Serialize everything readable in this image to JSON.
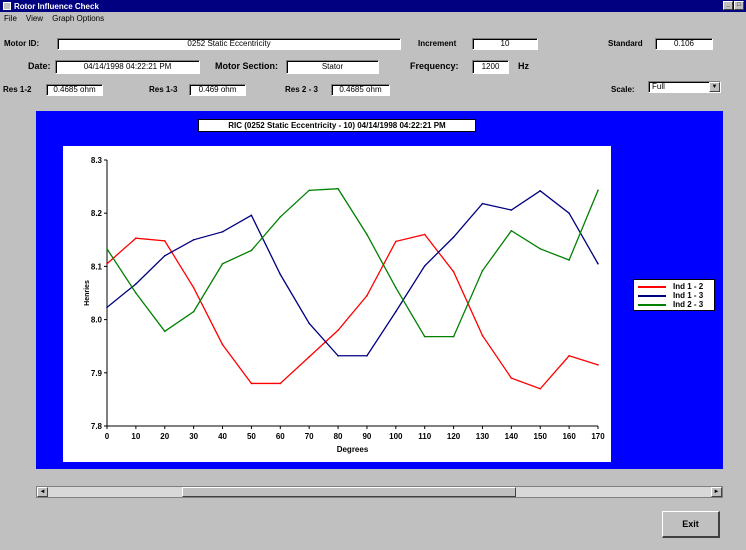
{
  "window": {
    "title": "Rotor Influence Check",
    "buttons": {
      "minimize": "_",
      "maximize": "□"
    }
  },
  "menu": [
    "File",
    "View",
    "Graph Options"
  ],
  "form": {
    "motor_id_label": "Motor ID:",
    "motor_id_value": "0252 Static Eccentricity",
    "increment_label": "Increment",
    "increment_value": "10",
    "standard_label": "Standard",
    "standard_value": "0.106",
    "date_label": "Date:",
    "date_value": "04/14/1998 04:22:21 PM",
    "motor_section_label": "Motor Section:",
    "motor_section_value": "Stator",
    "frequency_label": "Frequency:",
    "frequency_value": "1200",
    "frequency_unit": "Hz",
    "res12_label": "Res 1-2",
    "res12_value": "0.4685 ohm",
    "res13_label": "Res 1-3",
    "res13_value": "0.469 ohm",
    "res23_label": "Res 2 - 3",
    "res23_value": "0.4685 ohm",
    "scale_label": "Scale:",
    "scale_value": "Full"
  },
  "chart_data": {
    "type": "line",
    "title": "RIC (0252 Static Eccentricity - 10) 04/14/1998 04:22:21 PM",
    "xlabel": "Degrees",
    "ylabel": "Henries",
    "xlim": [
      0,
      170
    ],
    "ylim": [
      7.8,
      8.3
    ],
    "x": [
      0,
      10,
      20,
      30,
      40,
      50,
      60,
      70,
      80,
      90,
      100,
      110,
      120,
      130,
      140,
      150,
      160,
      170
    ],
    "x_ticks": [
      "0",
      "10",
      "20",
      "30",
      "40",
      "50",
      "60",
      "70",
      "80",
      "90",
      "100",
      "110",
      "120",
      "130",
      "140",
      "150",
      "160",
      "170"
    ],
    "y_ticks": [
      "7.8",
      "7.9",
      "8.0",
      "8.1",
      "8.2",
      "8.3"
    ],
    "y_tick_values": [
      7.8,
      7.9,
      8.0,
      8.1,
      8.2,
      8.3
    ],
    "legend_position": "right",
    "series": [
      {
        "name": "Ind 1 - 2",
        "color": "#ff0000",
        "values": [
          8.105,
          8.153,
          8.148,
          8.06,
          7.953,
          7.88,
          7.88,
          7.93,
          7.98,
          8.045,
          8.147,
          8.16,
          8.09,
          7.97,
          7.89,
          7.87,
          7.932,
          7.915
        ]
      },
      {
        "name": "Ind 1 - 3",
        "color": "#000080",
        "values": [
          8.023,
          8.067,
          8.12,
          8.15,
          8.165,
          8.196,
          8.085,
          7.993,
          7.932,
          7.932,
          8.015,
          8.101,
          8.155,
          8.218,
          8.206,
          8.242,
          8.2,
          8.105
        ]
      },
      {
        "name": "Ind 2 - 3",
        "color": "#008000",
        "values": [
          8.133,
          8.05,
          7.978,
          8.015,
          8.105,
          8.13,
          8.193,
          8.243,
          8.246,
          8.16,
          8.06,
          7.968,
          7.968,
          8.092,
          8.167,
          8.133,
          8.112,
          8.243
        ]
      }
    ]
  },
  "scroll": {
    "left": "◄",
    "right": "►"
  },
  "exit_label": "Exit"
}
